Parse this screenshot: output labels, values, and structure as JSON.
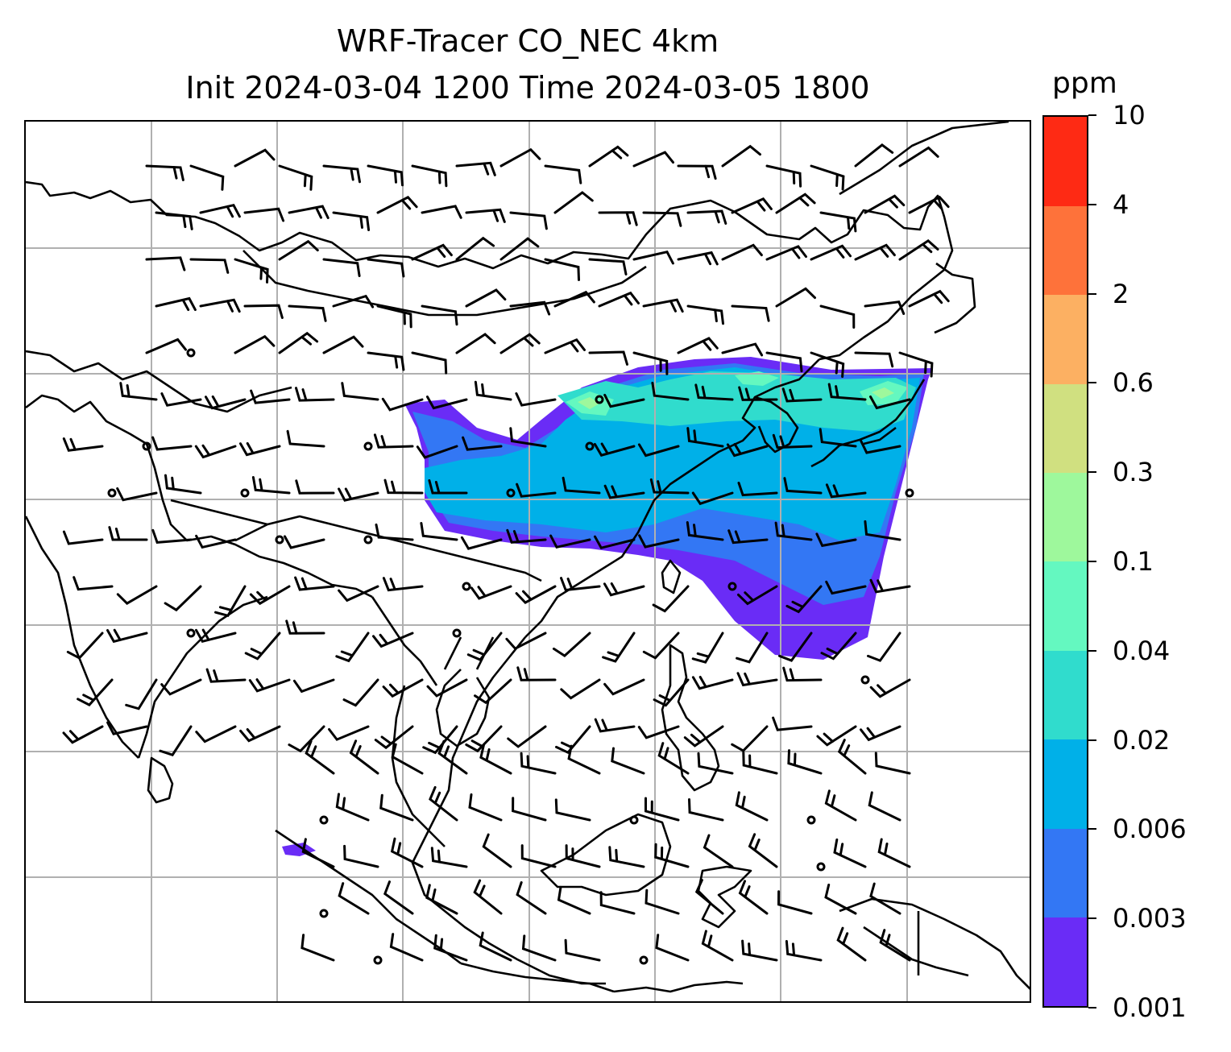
{
  "title": {
    "line1": "WRF-Tracer CO_NEC 4km",
    "line2": "Init 2024-03-04 1200 Time 2024-03-05 1800"
  },
  "colorbar": {
    "unit": "ppm",
    "levels": [
      "0.001",
      "0.003",
      "0.006",
      "0.02",
      "0.04",
      "0.1",
      "0.3",
      "0.6",
      "2",
      "4",
      "10"
    ],
    "colors": [
      "#6a2cf6",
      "#3377f4",
      "#00b0e8",
      "#30dccd",
      "#64f8c0",
      "#9ef89c",
      "#d0e080",
      "#fcb062",
      "#fe723a",
      "#fe2a14"
    ]
  },
  "map": {
    "grid_color": "#b0b0b0",
    "coastline_color": "#000000",
    "barb_color": "#000000"
  }
}
